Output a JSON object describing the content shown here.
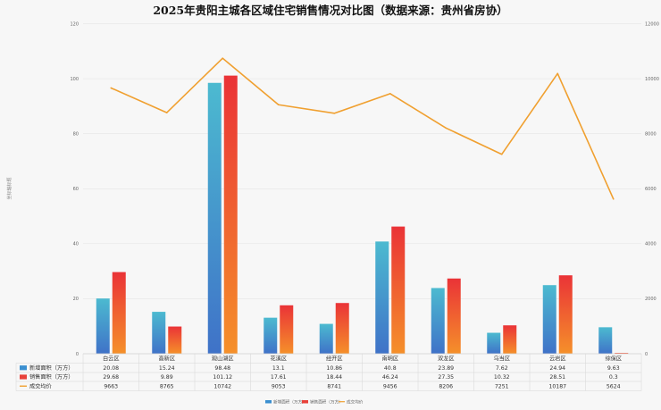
{
  "chart_data": {
    "type": "bar",
    "title": "2025年贵阳主城各区域住宅销售情况对比图（数据来源：贵州省房协）",
    "ylabel": "坐标轴标题",
    "categories": [
      "白云区",
      "高新区",
      "观山湖区",
      "花溪区",
      "经开区",
      "南明区",
      "双龙区",
      "乌当区",
      "云岩区",
      "综保区"
    ],
    "series": [
      {
        "name": "新增面积（万方）",
        "type": "bar",
        "axis": "left",
        "color": "#3a8fd0",
        "values": [
          20.08,
          15.24,
          98.48,
          13.1,
          10.86,
          40.8,
          23.89,
          7.62,
          24.94,
          9.63
        ]
      },
      {
        "name": "销售面积（万方）",
        "type": "bar",
        "axis": "left",
        "color": "#e8413a",
        "values": [
          29.68,
          9.89,
          101.12,
          17.61,
          18.44,
          46.24,
          27.35,
          10.32,
          28.51,
          0.3
        ]
      },
      {
        "name": "成交均价",
        "type": "line",
        "axis": "right",
        "color": "#f0a030",
        "values": [
          9663,
          8765,
          10742,
          9053,
          8741,
          9456,
          8206,
          7251,
          10187,
          5624
        ]
      }
    ],
    "ylim_left": [
      0,
      120
    ],
    "yticks_left": [
      0,
      20,
      40,
      60,
      80,
      100,
      120
    ],
    "ylim_right": [
      0,
      12000
    ],
    "yticks_right": [
      0,
      2000,
      4000,
      6000,
      8000,
      10000,
      12000
    ],
    "grid": true,
    "legend": "bottom",
    "data_table": true
  }
}
